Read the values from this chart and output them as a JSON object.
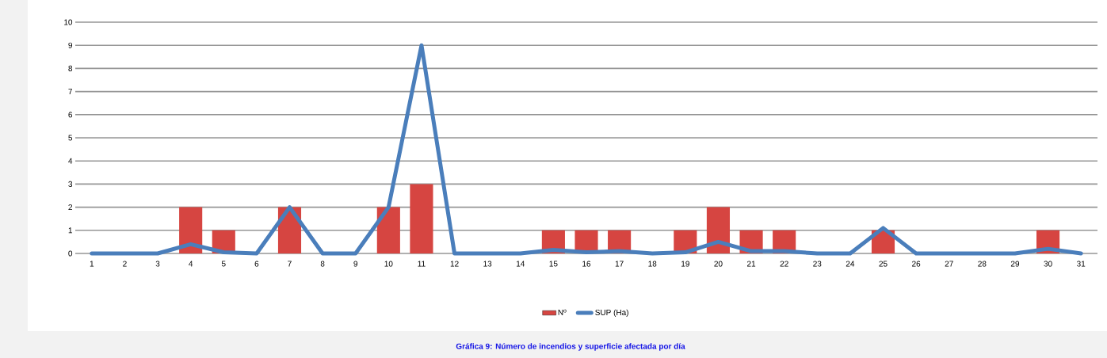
{
  "chart_data": {
    "type": "bar",
    "title": "Gráfica 9: Número de incendios y superficie afectada por día",
    "categories": [
      "1",
      "2",
      "3",
      "4",
      "5",
      "6",
      "7",
      "8",
      "9",
      "10",
      "11",
      "12",
      "13",
      "14",
      "15",
      "16",
      "17",
      "18",
      "19",
      "20",
      "21",
      "22",
      "23",
      "24",
      "25",
      "26",
      "27",
      "28",
      "29",
      "30",
      "31"
    ],
    "series": [
      {
        "name": "Nº",
        "color": "#d64541",
        "values": [
          0,
          0,
          0,
          2,
          1,
          0,
          2,
          0,
          0,
          2,
          3,
          0,
          0,
          0,
          1,
          1,
          1,
          0,
          1,
          2,
          1,
          1,
          0,
          0,
          1,
          0,
          0,
          0,
          0,
          1,
          0
        ]
      },
      {
        "name": "SUP (Ha)",
        "type": "line",
        "color": "#4a7ebb",
        "values": [
          0,
          0,
          0,
          0.4,
          0.05,
          0,
          2,
          0,
          0,
          2,
          9,
          0,
          0,
          0,
          0.15,
          0.05,
          0.1,
          0,
          0.05,
          0.5,
          0.1,
          0.1,
          0,
          0,
          1.1,
          0,
          0,
          0,
          0,
          0.2,
          0
        ]
      }
    ],
    "ylim": [
      0,
      10
    ],
    "yticks": [
      0,
      1,
      2,
      3,
      4,
      5,
      6,
      7,
      8,
      9,
      10
    ],
    "grid": "y",
    "legend": "bottom"
  }
}
